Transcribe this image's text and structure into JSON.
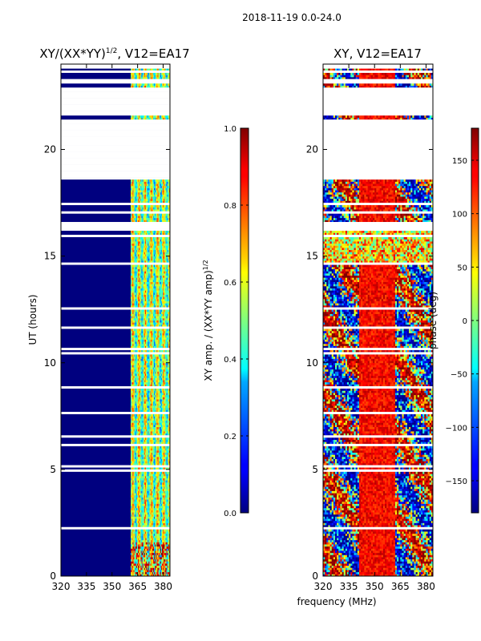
{
  "suptitle": "2018-11-19 0.0-24.0",
  "colors": {
    "jet": [
      "#00007f",
      "#0000ff",
      "#007fff",
      "#00ffff",
      "#7fff7f",
      "#ffff00",
      "#ff7f00",
      "#ff0000",
      "#7f0000"
    ],
    "blank": "#ffffff"
  },
  "chart_data": [
    {
      "type": "heatmap",
      "title": "XY/(XX*YY)^1/2, V12=EA17",
      "title_main": "XY/(XX*YY)",
      "title_sup": "1/2",
      "title_rest": ", V12=EA17",
      "xlabel": "frequency (MHz)",
      "ylabel": "UT (hours)",
      "xlim": [
        320,
        384
      ],
      "ylim": [
        0,
        24
      ],
      "xticks": [
        320,
        335,
        350,
        365,
        380
      ],
      "xtick_labels": [
        "320",
        "335",
        "350",
        "365",
        "380"
      ],
      "yticks": [
        0,
        5,
        10,
        15,
        20
      ],
      "ytick_labels": [
        "0",
        "5",
        "10",
        "15",
        "20"
      ],
      "colorbar": {
        "label": "XY amp. / (XX*YY amp)^1/2",
        "label_main": "XY amp. / (XX*YY amp)",
        "label_sup": "1/2",
        "range": [
          0.0,
          1.0
        ],
        "ticks": [
          0.0,
          0.2,
          0.4,
          0.6,
          0.8,
          1.0
        ],
        "tick_labels": [
          "0.0",
          "0.2",
          "0.4",
          "0.6",
          "0.8",
          "1.0"
        ]
      },
      "bright_channel_band_MHz": [
        361,
        384
      ],
      "low_value_band_MHz": [
        320,
        361
      ],
      "flagged_UT_ranges": [
        [
          18.6,
          21.4
        ],
        [
          21.6,
          22.9
        ],
        [
          23.1,
          23.3
        ]
      ]
    },
    {
      "type": "heatmap",
      "title": "XY, V12=EA17",
      "xlabel": "frequency (MHz)",
      "ylabel": "",
      "xlim": [
        320,
        384
      ],
      "ylim": [
        0,
        24
      ],
      "xticks": [
        320,
        335,
        350,
        365,
        380
      ],
      "xtick_labels": [
        "320",
        "335",
        "350",
        "365",
        "380"
      ],
      "yticks": [
        0,
        5,
        10,
        15,
        20
      ],
      "ytick_labels": [
        "0",
        "5",
        "10",
        "15",
        "20"
      ],
      "colorbar": {
        "label": "phase (deg)",
        "range": [
          -180,
          180
        ],
        "ticks": [
          -150,
          -100,
          -50,
          0,
          50,
          100,
          150
        ],
        "tick_labels": [
          "−150",
          "−100",
          "−50",
          "0",
          "50",
          "100",
          "150"
        ]
      },
      "flagged_UT_ranges": [
        [
          18.6,
          21.4
        ],
        [
          21.6,
          22.9
        ],
        [
          23.1,
          23.3
        ]
      ]
    }
  ]
}
